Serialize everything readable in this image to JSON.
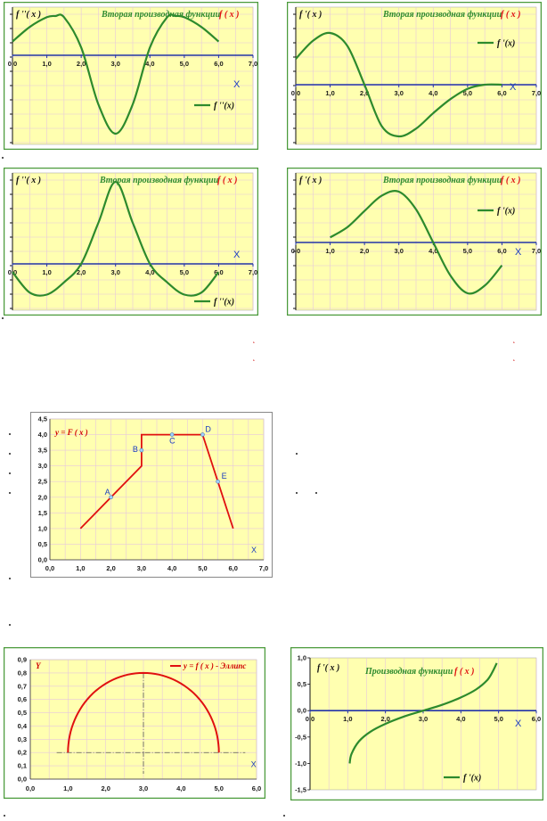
{
  "chart_data": [
    {
      "type": "line",
      "title": "Вторая производная функции",
      "title_func": "f ( x )",
      "ylabel": "f ''( x )",
      "xlabel": "X",
      "legend": "f ''(x)",
      "legend_position": "bottom-right",
      "x_ticks": [
        "0,0",
        "1,0",
        "2,0",
        "3,0",
        "4,0",
        "5,0",
        "6,0",
        "7,0"
      ],
      "xlim": [
        0,
        7
      ],
      "series": [
        {
          "x": [
            0,
            0.5,
            1.0,
            1.25,
            1.5,
            2.0,
            2.5,
            3.0,
            3.5,
            4.0,
            4.5,
            4.75,
            5.0,
            5.5,
            6.0
          ],
          "y": [
            0.35,
            0.72,
            0.97,
            1.0,
            0.97,
            0.2,
            -1.25,
            -2.0,
            -1.25,
            0.2,
            0.97,
            1.0,
            0.97,
            0.72,
            0.35
          ]
        }
      ]
    },
    {
      "type": "line",
      "title": "Вторая производная функции",
      "title_func": "f ( x )",
      "ylabel": "f '( x )",
      "xlabel": "X",
      "legend": "f '(x)",
      "legend_position": "top-right",
      "x_ticks": [
        "0,0",
        "1,0",
        "2,0",
        "3,0",
        "4,0",
        "5,0",
        "6,0",
        "7,0"
      ],
      "xlim": [
        0,
        7
      ],
      "series": [
        {
          "x": [
            0,
            0.5,
            1.0,
            1.5,
            2.0,
            2.5,
            3.0,
            3.5,
            4.0,
            4.5,
            5.0,
            5.5,
            6.0
          ],
          "y": [
            0.5,
            0.85,
            1.0,
            0.75,
            0.0,
            -0.8,
            -1.0,
            -0.85,
            -0.55,
            -0.28,
            -0.08,
            0.0,
            0.0
          ]
        }
      ]
    },
    {
      "type": "line",
      "title": "Вторая производная функции",
      "title_func": "f ( x )",
      "ylabel": "f ''( x )",
      "xlabel": "X",
      "legend": "f ''(x)",
      "legend_position": "bottom-right",
      "x_ticks": [
        "0,0",
        "1,0",
        "2,0",
        "3,0",
        "4,0",
        "5,0",
        "6,0",
        "7,0"
      ],
      "xlim": [
        0,
        7
      ],
      "series": [
        {
          "x": [
            0,
            0.5,
            1.0,
            1.5,
            2.0,
            2.5,
            3.0,
            3.5,
            4.0,
            4.5,
            5.0,
            5.5,
            6.0
          ],
          "y": [
            -0.2,
            -0.7,
            -0.75,
            -0.45,
            0.0,
            1.0,
            2.0,
            1.0,
            0.0,
            -0.45,
            -0.75,
            -0.7,
            -0.2
          ]
        }
      ]
    },
    {
      "type": "line",
      "title": "Вторая производная функции",
      "title_func": "f ( x )",
      "ylabel": "f '( x )",
      "xlabel": "X",
      "legend": "f '(x)",
      "legend_position": "top-right",
      "x_ticks": [
        "0,0",
        "1,0",
        "2,0",
        "3,0",
        "4,0",
        "5,0",
        "6,0",
        "7,0"
      ],
      "xlim": [
        0,
        7
      ],
      "series": [
        {
          "x": [
            1.0,
            1.5,
            2.0,
            2.5,
            3.0,
            3.5,
            4.0,
            4.5,
            5.0,
            5.5,
            6.0
          ],
          "y": [
            0.1,
            0.3,
            0.62,
            0.92,
            1.0,
            0.65,
            0.0,
            -0.65,
            -1.0,
            -0.85,
            -0.45
          ]
        }
      ]
    },
    {
      "type": "line",
      "title": "y = F ( x )",
      "xlabel": "X",
      "x_ticks": [
        "0,0",
        "1,0",
        "2,0",
        "3,0",
        "4,0",
        "5,0",
        "6,0",
        "7,0"
      ],
      "y_ticks": [
        "0,0",
        "0,5",
        "1,0",
        "1,5",
        "2,0",
        "2,5",
        "3,0",
        "3,5",
        "4,0",
        "4,5"
      ],
      "xlim": [
        0,
        7
      ],
      "ylim": [
        0,
        4.5
      ],
      "series": [
        {
          "x": [
            1,
            3,
            3,
            5,
            6
          ],
          "y": [
            1.0,
            3.0,
            4.0,
            4.0,
            1.0
          ]
        }
      ],
      "points": [
        {
          "label": "A",
          "x": 2.0,
          "y": 2.0
        },
        {
          "label": "B",
          "x": 3.0,
          "y": 3.5
        },
        {
          "label": "C",
          "x": 4.0,
          "y": 4.0
        },
        {
          "label": "D",
          "x": 5.0,
          "y": 4.0
        },
        {
          "label": "E",
          "x": 5.5,
          "y": 2.5
        }
      ]
    },
    {
      "type": "line",
      "title": "y = f ( x ) - Эллипс",
      "ylabel": "Y",
      "xlabel": "X",
      "legend_position": "top-right",
      "x_ticks": [
        "0,0",
        "1,0",
        "2,0",
        "3,0",
        "4,0",
        "5,0",
        "6,0"
      ],
      "y_ticks": [
        "0,0",
        "0,1",
        "0,2",
        "0,3",
        "0,4",
        "0,5",
        "0,6",
        "0,7",
        "0,8",
        "0,9"
      ],
      "xlim": [
        0,
        6
      ],
      "ylim": [
        0,
        0.9
      ],
      "series": [
        {
          "center_x": 3.0,
          "center_y": 0.2,
          "semi_x": 2.0,
          "semi_y": 0.6,
          "x_range": [
            1,
            5
          ]
        }
      ]
    },
    {
      "type": "line",
      "title": "Производная функции",
      "title_func": "f ( x )",
      "ylabel": "f '( x )",
      "xlabel": "X",
      "legend": "f '(x)",
      "legend_position": "bottom-right",
      "x_ticks": [
        "0,0",
        "1,0",
        "2,0",
        "3,0",
        "4,0",
        "5,0",
        "6,0"
      ],
      "y_ticks": [
        "1,0",
        "0,5",
        "0,0",
        "-0,5",
        "-1,0",
        "-1,5"
      ],
      "xlim": [
        0,
        6
      ],
      "ylim": [
        -1.5,
        1.0
      ],
      "series": [
        {
          "x": [
            1.05,
            1.1,
            1.3,
            1.6,
            2.0,
            2.5,
            3.0,
            3.5,
            4.0,
            4.4,
            4.7,
            4.85,
            4.95
          ],
          "y": [
            -1.0,
            -0.82,
            -0.58,
            -0.4,
            -0.25,
            -0.11,
            0.0,
            0.11,
            0.25,
            0.4,
            0.58,
            0.75,
            0.9
          ]
        }
      ]
    }
  ]
}
